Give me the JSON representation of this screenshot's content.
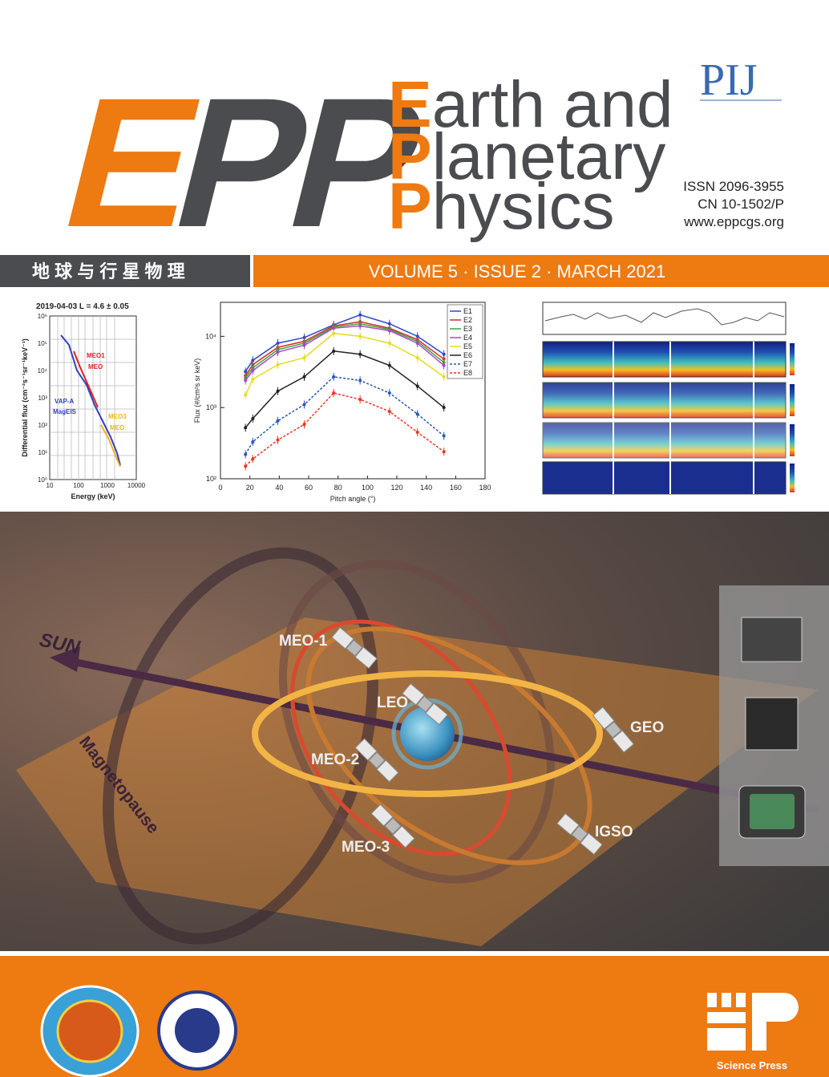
{
  "logo": [
    "E",
    "P",
    "P"
  ],
  "title_lines": [
    {
      "initial": "E",
      "rest": "arth and"
    },
    {
      "initial": "P",
      "rest": "lanetary"
    },
    {
      "initial": "P",
      "rest": "hysics"
    }
  ],
  "publisher_mark": "PIJ",
  "issn": "ISSN 2096-3955",
  "cn": "CN 10-1502/P",
  "website": "www.eppcgs.org",
  "chinese_title": "地 球 与 行 星 物 理",
  "issue_line": "VOLUME 5 · ISSUE 2 · MARCH  2021",
  "left_figure": {
    "title": "2019-04-03  L = 4.6 ± 0.05",
    "y_label": "Differential flux (cm⁻²s⁻¹sr⁻¹keV⁻¹)",
    "x_label": "Energy (keV)",
    "x_ticks": [
      "10",
      "100",
      "1000",
      "10000"
    ],
    "y_ticks": [
      "10⁰",
      "10¹",
      "10²",
      "10³",
      "10⁴",
      "10⁵",
      "10⁶"
    ],
    "annotations": [
      "MEO1",
      "MEO",
      "VAP-A",
      "MagEIS",
      "MEO3",
      "MEO"
    ]
  },
  "chart_data": {
    "type": "line",
    "x_label": "Pitch angle (°)",
    "y_label": "Flux (#/cm²s sr keV)",
    "x": [
      17,
      22,
      39,
      57,
      77,
      95,
      115,
      134,
      152
    ],
    "xlim": [
      0,
      180
    ],
    "xticks": [
      0,
      20,
      40,
      60,
      80,
      100,
      120,
      140,
      160,
      180
    ],
    "ylim": [
      100,
      30000
    ],
    "yticks": [
      {
        "value": 100,
        "label": "10²"
      },
      {
        "value": 1000,
        "label": "10³"
      },
      {
        "value": 10000,
        "label": "10⁴"
      }
    ],
    "log_y": true,
    "legend": "upper right",
    "series": [
      {
        "name": "E1",
        "color": "#2a48c8",
        "dashed": false,
        "values": [
          3200,
          4600,
          8000,
          9600,
          14500,
          20000,
          15000,
          10000,
          5600
        ]
      },
      {
        "name": "E2",
        "color": "#d82a2a",
        "dashed": false,
        "values": [
          2800,
          4000,
          7000,
          8500,
          14000,
          16000,
          13000,
          9000,
          4800
        ]
      },
      {
        "name": "E3",
        "color": "#38a838",
        "dashed": false,
        "values": [
          2600,
          3600,
          6500,
          8000,
          13500,
          15000,
          12500,
          8500,
          4300
        ]
      },
      {
        "name": "E4",
        "color": "#a848c8",
        "dashed": false,
        "values": [
          2400,
          3300,
          6000,
          7500,
          13000,
          14000,
          12000,
          8000,
          3900
        ]
      },
      {
        "name": "E5",
        "color": "#e6dc20",
        "dashed": false,
        "values": [
          1500,
          2500,
          4000,
          5000,
          11000,
          10000,
          8000,
          5000,
          2700
        ]
      },
      {
        "name": "E6",
        "color": "#222222",
        "dashed": false,
        "values": [
          520,
          700,
          1700,
          2700,
          6200,
          5600,
          3900,
          2000,
          1000
        ]
      },
      {
        "name": "E7",
        "color": "#2858b8",
        "dashed": true,
        "values": [
          220,
          330,
          650,
          1100,
          2700,
          2400,
          1600,
          810,
          400
        ]
      },
      {
        "name": "E8",
        "color": "#ee3322",
        "dashed": true,
        "values": [
          150,
          190,
          350,
          580,
          1600,
          1300,
          880,
          450,
          240
        ]
      }
    ]
  },
  "illustration": {
    "labels": {
      "sun": "SUN",
      "magnetopause": "Magnetopause",
      "meo1": "MEO-1",
      "leo": "LEO",
      "geo": "GEO",
      "meo2": "MEO-2",
      "meo3": "MEO-3",
      "igso": "IGSO"
    }
  },
  "footer": {
    "publisher": "Science Press"
  }
}
